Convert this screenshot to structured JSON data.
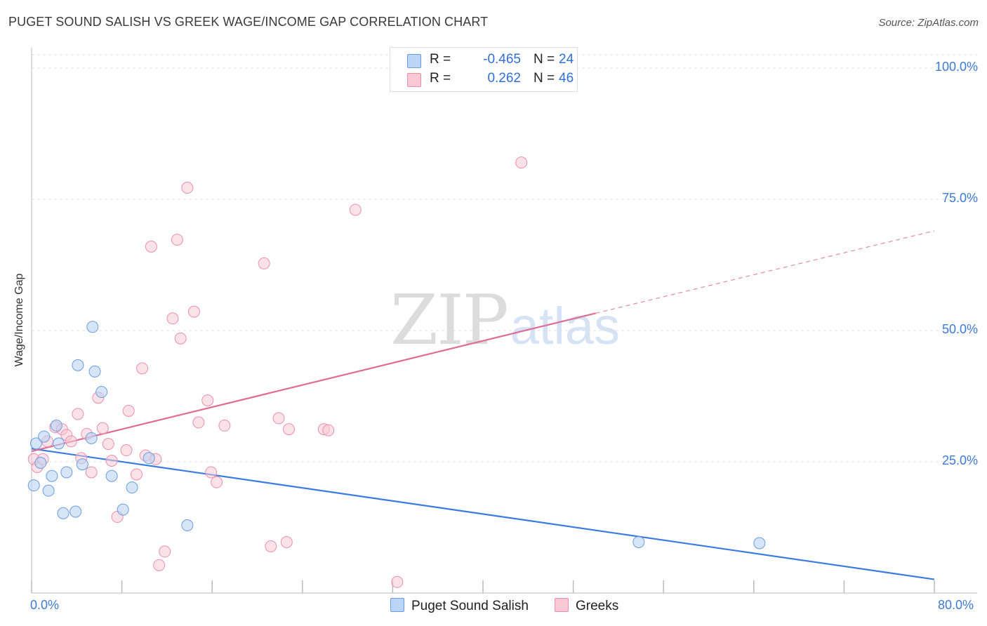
{
  "title": "PUGET SOUND SALISH VS GREEK WAGE/INCOME GAP CORRELATION CHART",
  "source": "Source: ZipAtlas.com",
  "watermark": {
    "zip": "ZIP",
    "atlas": "atlas"
  },
  "legend": {
    "rows": [
      {
        "r_label": "R =",
        "r_value": "-0.465",
        "n_label": "N =",
        "n_value": "24"
      },
      {
        "r_label": "R =",
        "r_value": "0.262",
        "n_label": "N =",
        "n_value": "46"
      }
    ]
  },
  "colors": {
    "blue_fill": "#bcd4f5",
    "blue_stroke": "#6a9de0",
    "blue_line": "#3a7be0",
    "pink_fill": "#f8c8d6",
    "pink_stroke": "#e990ad",
    "pink_line": "#e06c94",
    "tick_text": "#3d7bd6",
    "grid": "#dddddd"
  },
  "chart_data": {
    "type": "scatter",
    "title": "PUGET SOUND SALISH VS GREEK WAGE/INCOME GAP CORRELATION CHART",
    "xlabel": "",
    "ylabel": "Wage/Income Gap",
    "xlim": [
      0,
      80
    ],
    "ylim": [
      0,
      100
    ],
    "x_tick_labels": [
      "0.0%",
      "80.0%"
    ],
    "y_ticks": [
      25,
      50,
      75,
      100
    ],
    "y_tick_labels": [
      "25.0%",
      "50.0%",
      "75.0%",
      "100.0%"
    ],
    "grid": true,
    "legend_position": "bottom-center",
    "series": [
      {
        "name": "Puget Sound Salish",
        "color": "#bcd4f5",
        "r": -0.465,
        "n": 24,
        "trend": {
          "x": [
            0,
            80
          ],
          "y": [
            27.5,
            2.6
          ],
          "style": "solid"
        },
        "points": [
          {
            "x": 0.2,
            "y": 20.5
          },
          {
            "x": 0.4,
            "y": 28.5
          },
          {
            "x": 0.8,
            "y": 24.8
          },
          {
            "x": 1.1,
            "y": 29.8
          },
          {
            "x": 1.5,
            "y": 19.5
          },
          {
            "x": 1.8,
            "y": 22.3
          },
          {
            "x": 2.2,
            "y": 31.9
          },
          {
            "x": 2.4,
            "y": 28.5
          },
          {
            "x": 2.8,
            "y": 15.2
          },
          {
            "x": 3.1,
            "y": 23.0
          },
          {
            "x": 3.9,
            "y": 15.5
          },
          {
            "x": 4.1,
            "y": 43.4
          },
          {
            "x": 4.5,
            "y": 24.5
          },
          {
            "x": 5.3,
            "y": 29.5
          },
          {
            "x": 5.4,
            "y": 50.7
          },
          {
            "x": 5.6,
            "y": 42.2
          },
          {
            "x": 6.2,
            "y": 38.3
          },
          {
            "x": 7.1,
            "y": 22.3
          },
          {
            "x": 8.1,
            "y": 15.9
          },
          {
            "x": 8.9,
            "y": 20.1
          },
          {
            "x": 10.4,
            "y": 25.7
          },
          {
            "x": 13.8,
            "y": 12.9
          },
          {
            "x": 53.8,
            "y": 9.7
          },
          {
            "x": 64.5,
            "y": 9.5
          }
        ]
      },
      {
        "name": "Greeks",
        "color": "#f8c8d6",
        "r": 0.262,
        "n": 46,
        "trend": {
          "x": [
            0,
            50
          ],
          "y": [
            27.0,
            53.3
          ],
          "style": "solid",
          "dashed_extension": {
            "x": [
              50,
              80
            ],
            "y": [
              53.3,
              69.0
            ]
          }
        },
        "points": [
          {
            "x": 0.2,
            "y": 25.5
          },
          {
            "x": 0.5,
            "y": 24.0
          },
          {
            "x": 1.0,
            "y": 25.5
          },
          {
            "x": 1.4,
            "y": 28.9
          },
          {
            "x": 2.1,
            "y": 31.6
          },
          {
            "x": 2.7,
            "y": 31.2
          },
          {
            "x": 3.1,
            "y": 30.1
          },
          {
            "x": 3.5,
            "y": 28.9
          },
          {
            "x": 4.1,
            "y": 34.1
          },
          {
            "x": 4.4,
            "y": 25.7
          },
          {
            "x": 4.9,
            "y": 30.3
          },
          {
            "x": 5.3,
            "y": 23.0
          },
          {
            "x": 5.9,
            "y": 37.2
          },
          {
            "x": 6.3,
            "y": 31.4
          },
          {
            "x": 6.8,
            "y": 28.4
          },
          {
            "x": 7.1,
            "y": 25.2
          },
          {
            "x": 7.6,
            "y": 14.5
          },
          {
            "x": 8.4,
            "y": 27.2
          },
          {
            "x": 8.6,
            "y": 34.7
          },
          {
            "x": 9.3,
            "y": 22.6
          },
          {
            "x": 9.8,
            "y": 42.8
          },
          {
            "x": 10.1,
            "y": 26.2
          },
          {
            "x": 10.6,
            "y": 66.0
          },
          {
            "x": 11.0,
            "y": 25.5
          },
          {
            "x": 11.3,
            "y": 5.3
          },
          {
            "x": 11.8,
            "y": 7.9
          },
          {
            "x": 12.5,
            "y": 52.3
          },
          {
            "x": 12.9,
            "y": 67.3
          },
          {
            "x": 13.2,
            "y": 48.5
          },
          {
            "x": 13.8,
            "y": 77.2
          },
          {
            "x": 14.4,
            "y": 53.6
          },
          {
            "x": 14.8,
            "y": 32.5
          },
          {
            "x": 15.6,
            "y": 36.7
          },
          {
            "x": 15.9,
            "y": 23.0
          },
          {
            "x": 16.4,
            "y": 21.1
          },
          {
            "x": 17.1,
            "y": 31.9
          },
          {
            "x": 20.6,
            "y": 62.8
          },
          {
            "x": 21.2,
            "y": 8.9
          },
          {
            "x": 21.9,
            "y": 33.3
          },
          {
            "x": 22.6,
            "y": 9.7
          },
          {
            "x": 22.8,
            "y": 31.2
          },
          {
            "x": 25.9,
            "y": 31.2
          },
          {
            "x": 26.3,
            "y": 31.0
          },
          {
            "x": 28.7,
            "y": 73.0
          },
          {
            "x": 32.4,
            "y": 2.1
          },
          {
            "x": 43.4,
            "y": 82.0
          }
        ]
      }
    ]
  }
}
